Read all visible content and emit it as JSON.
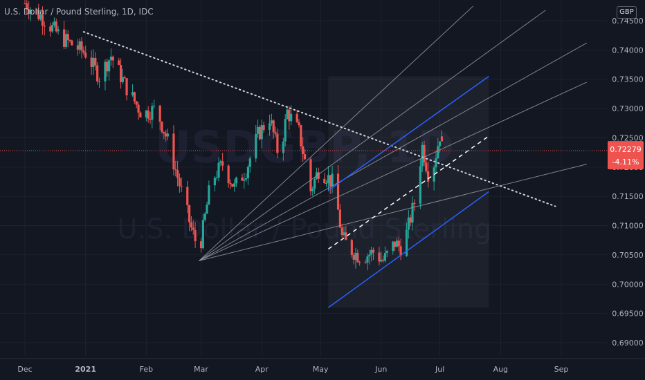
{
  "legend": {
    "symbol": "U.S. Dollar / Pound Sterling",
    "interval": "1D",
    "source": "IDC"
  },
  "currency_badge": "GBP",
  "watermark": {
    "symbol": "USDGBP, 1D",
    "name": "U.S. Dollar / Pound Sterling"
  },
  "price_label": {
    "value": "0.72279",
    "change": "-4.11%"
  },
  "colors": {
    "up": "#26a69a",
    "down": "#ef5350",
    "channel": "#2962ff",
    "fan": "#9598a1",
    "price_line": "#ef5350"
  },
  "chart_data": {
    "type": "candlestick",
    "y_ticks": [
      "0.74500",
      "0.74000",
      "0.73500",
      "0.73000",
      "0.72500",
      "0.72000",
      "0.71500",
      "0.71000",
      "0.70500",
      "0.70000",
      "0.69500",
      "0.69000"
    ],
    "x_ticks": [
      "Dec",
      "2021",
      "Feb",
      "Mar",
      "Apr",
      "May",
      "Jun",
      "Jul",
      "Aug",
      "Sep"
    ],
    "ylim": [
      0.688,
      0.7468
    ],
    "last_price": 0.72279,
    "close_path": [
      [
        "2020-12-01",
        0.748
      ],
      [
        "2020-12-10",
        0.7455
      ],
      [
        "2020-12-20",
        0.742
      ],
      [
        "2021-01-01",
        0.7395
      ],
      [
        "2021-01-08",
        0.7355
      ],
      [
        "2021-01-14",
        0.739
      ],
      [
        "2021-01-22",
        0.7335
      ],
      [
        "2021-01-30",
        0.729
      ],
      [
        "2021-02-06",
        0.73
      ],
      [
        "2021-02-12",
        0.7245
      ],
      [
        "2021-02-18",
        0.717
      ],
      [
        "2021-02-24",
        0.7095
      ],
      [
        "2021-02-28",
        0.7055
      ],
      [
        "2021-03-06",
        0.7175
      ],
      [
        "2021-03-12",
        0.7205
      ],
      [
        "2021-03-18",
        0.7165
      ],
      [
        "2021-03-24",
        0.7195
      ],
      [
        "2021-03-30",
        0.7255
      ],
      [
        "2021-04-05",
        0.7285
      ],
      [
        "2021-04-10",
        0.7215
      ],
      [
        "2021-04-14",
        0.7295
      ],
      [
        "2021-04-20",
        0.726
      ],
      [
        "2021-04-26",
        0.716
      ],
      [
        "2021-04-30",
        0.7195
      ],
      [
        "2021-05-04",
        0.7185
      ],
      [
        "2021-05-08",
        0.717
      ],
      [
        "2021-05-12",
        0.708
      ],
      [
        "2021-05-16",
        0.706
      ],
      [
        "2021-05-22",
        0.7045
      ],
      [
        "2021-05-28",
        0.7055
      ],
      [
        "2021-06-02",
        0.704
      ],
      [
        "2021-06-08",
        0.707
      ],
      [
        "2021-06-12",
        0.706
      ],
      [
        "2021-06-18",
        0.714
      ],
      [
        "2021-06-22",
        0.7235
      ],
      [
        "2021-06-26",
        0.7175
      ],
      [
        "2021-07-01",
        0.7255
      ],
      [
        "2021-07-03",
        0.72279
      ]
    ],
    "drawings": {
      "downtrend_dotted": [
        [
          "2020-12-31",
          0.7431
        ],
        [
          "2021-08-29",
          0.7133
        ]
      ],
      "channel_upper": [
        [
          "2021-05-05",
          0.716
        ],
        [
          "2021-07-26",
          0.7355
        ]
      ],
      "channel_lower": [
        [
          "2021-05-05",
          0.696
        ],
        [
          "2021-07-26",
          0.7158
        ]
      ],
      "channel_mid_dashed": [
        [
          "2021-05-05",
          0.706
        ],
        [
          "2021-07-26",
          0.7253
        ]
      ],
      "fan_origin": [
        "2021-02-28",
        0.704
      ],
      "fan_ends": [
        [
          "2021-07-18",
          0.7475
        ],
        [
          "2021-08-24",
          0.7468
        ],
        [
          "2021-09-14",
          0.7412
        ],
        [
          "2021-09-14",
          0.7345
        ],
        [
          "2021-09-14",
          0.7205
        ]
      ]
    }
  }
}
